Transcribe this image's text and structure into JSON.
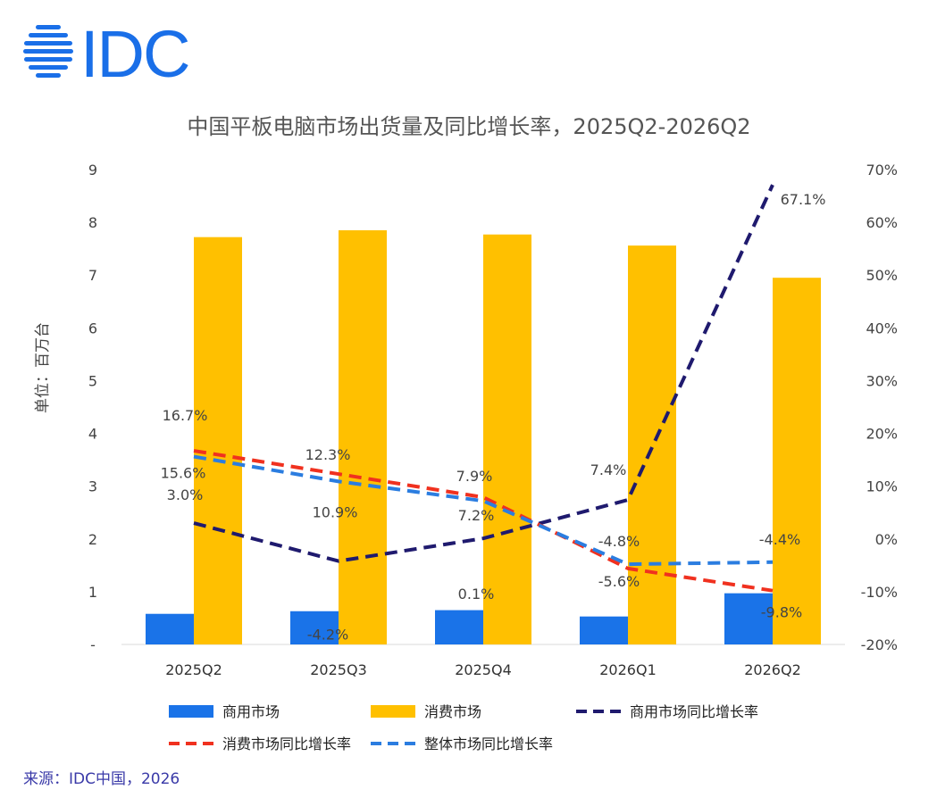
{
  "logo": {
    "brand_text": "IDC",
    "color": "#1a6fe8"
  },
  "source_text": "来源：IDC中国，2026",
  "chart_data": {
    "type": "bar",
    "title": "中国平板电脑市场出货量及同比增长率，2025Q2-2026Q2",
    "ylabel": "单位：百万台",
    "categories": [
      "2025Q2",
      "2025Q3",
      "2025Q4",
      "2026Q1",
      "2026Q2"
    ],
    "ylim": [
      0,
      9
    ],
    "y2lim": [
      -20,
      70
    ],
    "left_ticks": [
      "-",
      "1",
      "2",
      "3",
      "4",
      "5",
      "6",
      "7",
      "8",
      "9"
    ],
    "right_ticks": [
      "-20%",
      "-10%",
      "0%",
      "10%",
      "20%",
      "30%",
      "40%",
      "50%",
      "60%",
      "70%"
    ],
    "grid": false,
    "legend_position": "bottom",
    "series": [
      {
        "name": "商用市场",
        "kind": "bar",
        "axis": "left",
        "color": "#1a73e8",
        "values": [
          0.58,
          0.63,
          0.65,
          0.53,
          0.97
        ]
      },
      {
        "name": "消费市场",
        "kind": "bar",
        "axis": "left",
        "color": "#ffc000",
        "values": [
          7.72,
          7.85,
          7.77,
          7.56,
          6.95
        ]
      },
      {
        "name": "商用市场同比增长率",
        "kind": "line",
        "axis": "right",
        "color": "#1f1a6e",
        "values": [
          3.0,
          -4.2,
          0.1,
          7.4,
          67.1
        ],
        "labels": [
          "3.0%",
          "-4.2%",
          "0.1%",
          "7.4%",
          "67.1%"
        ]
      },
      {
        "name": "消费市场同比增长率",
        "kind": "line",
        "axis": "right",
        "color": "#f0311f",
        "values": [
          16.7,
          12.3,
          7.9,
          -5.6,
          -9.8
        ],
        "labels": [
          "16.7%",
          "12.3%",
          "7.9%",
          "-5.6%",
          "-9.8%"
        ]
      },
      {
        "name": "整体市场同比增长率",
        "kind": "line",
        "axis": "right",
        "color": "#2b7de0",
        "values": [
          15.6,
          10.9,
          7.2,
          -4.8,
          -4.4
        ],
        "labels": [
          "15.6%",
          "10.9%",
          "7.2%",
          "-4.8%",
          "-4.4%"
        ]
      }
    ]
  }
}
